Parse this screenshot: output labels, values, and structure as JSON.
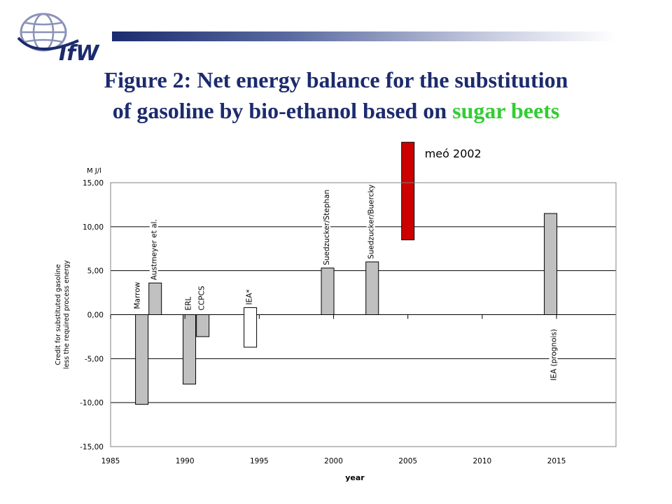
{
  "logo": {
    "text": "IfW",
    "icon": "globe-icon"
  },
  "title": {
    "line1": "Figure 2: Net energy balance for the substitution",
    "line2_prefix": "of gasoline by bio-ethanol based on ",
    "line2_highlight": "sugar beets"
  },
  "colors": {
    "title": "#1c2b6e",
    "highlight": "#33cc33",
    "bar_gray": "#c0c0c0",
    "bar_red": "#cc0000",
    "bar_white": "#ffffff"
  },
  "chart_data": {
    "type": "bar",
    "ylabel_unit": "M J/l",
    "ylabel_line1": "Credit for substituted gasoline",
    "ylabel_line2": "less the required process energy",
    "xlabel": "year",
    "ylim": [
      -15,
      15
    ],
    "xlim": [
      1985,
      2019
    ],
    "yticks": [
      "15,00",
      "10,00",
      "5,00",
      "0,00",
      "-5,00",
      "-10,00",
      "-15,00"
    ],
    "ytick_values": [
      15,
      10,
      5,
      0,
      -5,
      -10,
      -15
    ],
    "xticks": [
      "1985",
      "1990",
      "1995",
      "2000",
      "2005",
      "2010",
      "2015"
    ],
    "xtick_values": [
      1985,
      1990,
      1995,
      2000,
      2005,
      2010,
      2015
    ],
    "grid": true,
    "bars": [
      {
        "label": "Marrow",
        "x": 1987.1,
        "y0": 0,
        "y1": -10.2,
        "color": "gray"
      },
      {
        "label": "Austmeyer et al.",
        "x": 1988.0,
        "y0": 0,
        "y1": 3.6,
        "color": "gray"
      },
      {
        "label": "ERL",
        "x": 1990.3,
        "y0": 0,
        "y1": -7.9,
        "color": "gray"
      },
      {
        "label": "CCPCS",
        "x": 1991.2,
        "y0": 0,
        "y1": -2.5,
        "color": "gray"
      },
      {
        "label": "IEA*",
        "x": 1994.4,
        "y0": 0.8,
        "y1": -3.7,
        "color": "white"
      },
      {
        "label": "Suedzucker/Stephan",
        "x": 1999.6,
        "y0": 0,
        "y1": 5.3,
        "color": "gray"
      },
      {
        "label": "Suedzucker/Buercky",
        "x": 2002.6,
        "y0": 0,
        "y1": 6.0,
        "color": "gray"
      },
      {
        "label": "meó 2002",
        "x": 2005.0,
        "y0": 8.5,
        "y1": 19.6,
        "color": "red"
      },
      {
        "label": "IEA (prognois)",
        "x": 2014.6,
        "y0": 0,
        "y1": 11.5,
        "color": "gray"
      }
    ]
  }
}
